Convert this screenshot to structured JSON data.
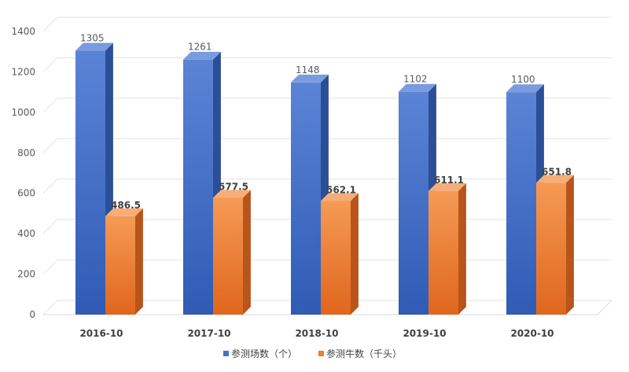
{
  "chart_data": {
    "type": "bar",
    "categories": [
      "2016-10",
      "2017-10",
      "2018-10",
      "2019-10",
      "2020-10"
    ],
    "series": [
      {
        "name": "参测场数（个）",
        "values": [
          1305,
          1261,
          1148,
          1102,
          1100
        ],
        "labels": [
          "1305",
          "1261",
          "1148",
          "1102",
          "1100"
        ],
        "color": "#4472c4"
      },
      {
        "name": "参测牛数（千头）",
        "values": [
          486.5,
          577.5,
          562.1,
          611.1,
          651.8
        ],
        "labels": [
          "486.5",
          "577.5",
          "562.1",
          "611.1",
          "651.8"
        ],
        "color": "#ed7d31"
      }
    ],
    "ylim": [
      0,
      1400
    ],
    "yticks": [
      "0",
      "200",
      "400",
      "600",
      "800",
      "1000",
      "1200",
      "1400"
    ],
    "grid": true,
    "legend_position": "bottom",
    "style": "3d-column"
  }
}
